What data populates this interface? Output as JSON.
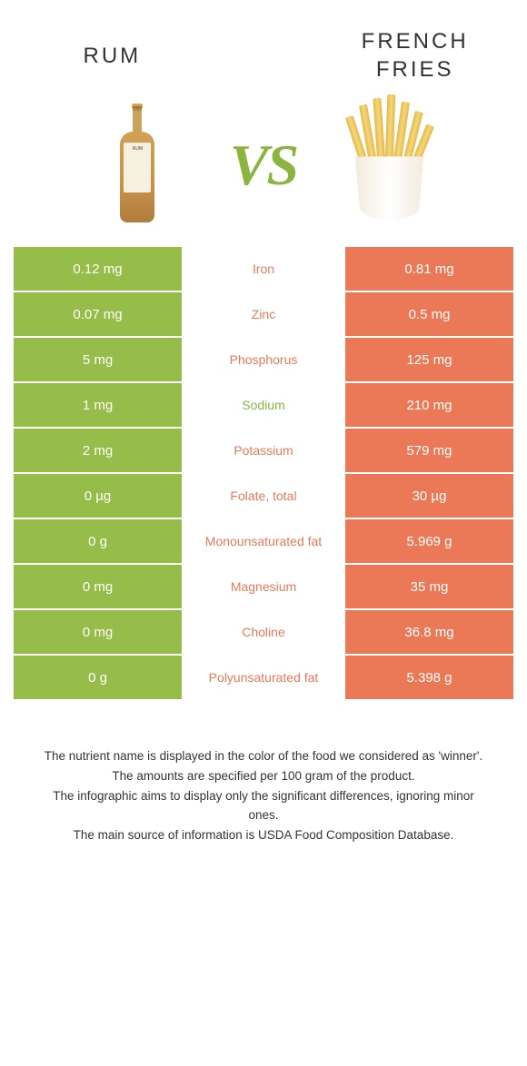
{
  "header": {
    "left_title": "Rum",
    "right_title": "French Fries",
    "vs": "VS"
  },
  "colors": {
    "green": "#96bc49",
    "orange": "#eb7957",
    "vs_green": "#8bb540"
  },
  "bottle_label": "RUM",
  "rows": [
    {
      "left": "0.12 mg",
      "mid": "Iron",
      "right": "0.81 mg",
      "mid_color": "orange"
    },
    {
      "left": "0.07 mg",
      "mid": "Zinc",
      "right": "0.5 mg",
      "mid_color": "orange"
    },
    {
      "left": "5 mg",
      "mid": "Phosphorus",
      "right": "125 mg",
      "mid_color": "orange"
    },
    {
      "left": "1 mg",
      "mid": "Sodium",
      "right": "210 mg",
      "mid_color": "green"
    },
    {
      "left": "2 mg",
      "mid": "Potassium",
      "right": "579 mg",
      "mid_color": "orange"
    },
    {
      "left": "0 µg",
      "mid": "Folate, total",
      "right": "30 µg",
      "mid_color": "orange"
    },
    {
      "left": "0 g",
      "mid": "Monounsaturated fat",
      "right": "5.969 g",
      "mid_color": "orange"
    },
    {
      "left": "0 mg",
      "mid": "Magnesium",
      "right": "35 mg",
      "mid_color": "orange"
    },
    {
      "left": "0 mg",
      "mid": "Choline",
      "right": "36.8 mg",
      "mid_color": "orange"
    },
    {
      "left": "0 g",
      "mid": "Polyunsaturated fat",
      "right": "5.398 g",
      "mid_color": "orange"
    }
  ],
  "footer": {
    "line1": "The nutrient name is displayed in the color of the food we considered as 'winner'.",
    "line2": "The amounts are specified per 100 gram of the product.",
    "line3": "The infographic aims to display only the significant differences, ignoring minor ones.",
    "line4": "The main source of information is USDA Food Composition Database."
  }
}
